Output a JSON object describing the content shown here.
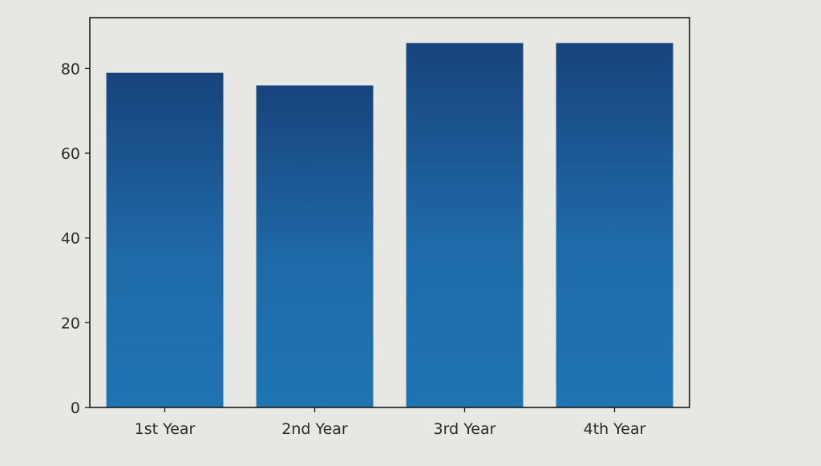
{
  "chart_data": {
    "type": "bar",
    "categories": [
      "1st Year",
      "2nd Year",
      "3rd Year",
      "4th Year"
    ],
    "values": [
      79,
      76,
      86,
      86
    ],
    "title": "",
    "xlabel": "",
    "ylabel": "",
    "ylim": [
      0,
      92
    ],
    "yticks": [
      "0",
      "20",
      "40",
      "60",
      "80"
    ],
    "grid": false,
    "bar_color": "#1f6aa8"
  }
}
